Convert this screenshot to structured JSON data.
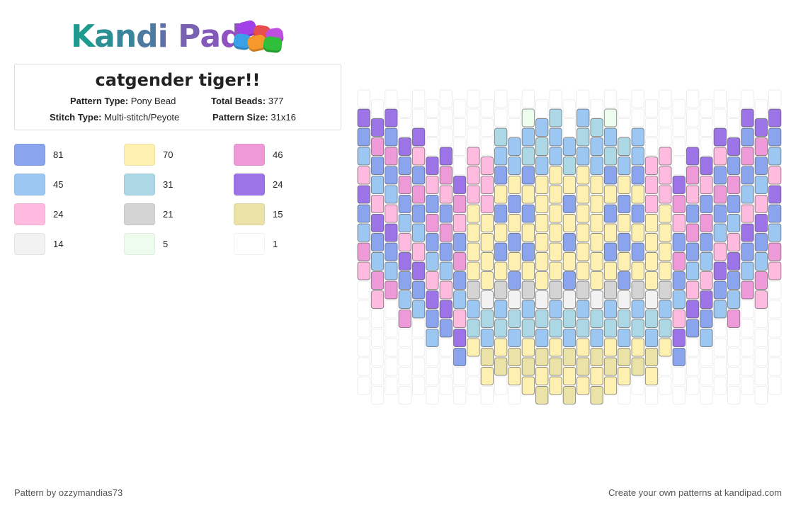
{
  "logo": {
    "text": "Kandi Pad"
  },
  "pattern": {
    "title": "catgender tiger!!",
    "type_label": "Pattern Type:",
    "type_value": "Pony Bead",
    "beads_label": "Total Beads:",
    "beads_value": "377",
    "stitch_label": "Stitch Type:",
    "stitch_value": "Multi-stitch/Peyote",
    "size_label": "Pattern Size:",
    "size_value": "31x16"
  },
  "colors": [
    {
      "hex": "#8aa4ee",
      "count": "81"
    },
    {
      "hex": "#fdf0b0",
      "count": "70"
    },
    {
      "hex": "#ee9ad8",
      "count": "46"
    },
    {
      "hex": "#9dc7f3",
      "count": "45"
    },
    {
      "hex": "#acd8e6",
      "count": "31"
    },
    {
      "hex": "#9d74e8",
      "count": "24"
    },
    {
      "hex": "#ffbae0",
      "count": "24"
    },
    {
      "hex": "#d4d4d4",
      "count": "21"
    },
    {
      "hex": "#ebe2a8",
      "count": "15"
    },
    {
      "hex": "#f2f2f2",
      "count": "14"
    },
    {
      "hex": "#eefcee",
      "count": "5"
    },
    {
      "hex": "#ffffff",
      "count": "1"
    }
  ],
  "footer": {
    "left": "Pattern by ozzymandias73",
    "right": "Create your own patterns at kandipad.com"
  }
}
